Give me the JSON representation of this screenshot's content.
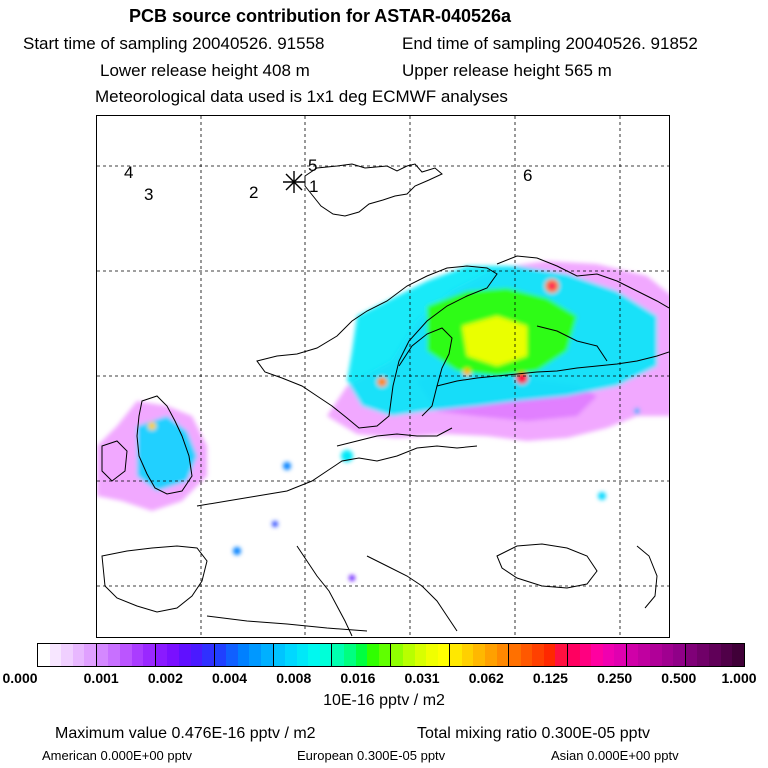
{
  "header": {
    "title": "PCB source contribution for ASTAR-040526a",
    "start_time": "Start time of sampling 20040526. 91558",
    "end_time": "End time of sampling 20040526. 91852",
    "lower_height": "Lower release height  408 m",
    "upper_height": "Upper release height  565 m",
    "met_data": "Meteorological data used is 1x1 deg ECMWF analyses"
  },
  "map": {
    "labels": [
      "1",
      "2",
      "3",
      "4",
      "5",
      "6"
    ],
    "release_marker": "release-point-star",
    "colors": {
      "coast": "#000000",
      "grid": "#000000",
      "plume_low": "#ee99ff",
      "plume_mid": "#00ffee",
      "plume_high": "#ff2060"
    }
  },
  "colorbar": {
    "ticks": [
      "0.000",
      "0.001",
      "0.002",
      "0.004",
      "0.008",
      "0.016",
      "0.031",
      "0.062",
      "0.125",
      "0.250",
      "0.500",
      "1.000"
    ],
    "units": "10E-16 pptv / m2",
    "colors": [
      "#ffffff",
      "#f7e6ff",
      "#f0d0ff",
      "#e8b8ff",
      "#e0a0ff",
      "#d488ff",
      "#c870ff",
      "#bb55ff",
      "#aa3cff",
      "#9a28ff",
      "#8a1aff",
      "#7a10ff",
      "#6010ff",
      "#4a1aff",
      "#3030ff",
      "#2040ff",
      "#1060ff",
      "#0080ff",
      "#0098ff",
      "#00b0ff",
      "#00c4ff",
      "#00d8ff",
      "#00e8f8",
      "#00f8f0",
      "#00ffd8",
      "#00ffb0",
      "#00ff80",
      "#00ff40",
      "#30ff00",
      "#60ff00",
      "#90ff00",
      "#b8ff00",
      "#d8ff00",
      "#f0ff00",
      "#ffff00",
      "#ffe800",
      "#ffd000",
      "#ffb800",
      "#ffa000",
      "#ff8800",
      "#ff7000",
      "#ff5800",
      "#ff4000",
      "#ff2800",
      "#ff1040",
      "#ff0060",
      "#ff0080",
      "#ff00a0",
      "#f000b0",
      "#e000b0",
      "#d000a8",
      "#c000a0",
      "#b00098",
      "#a00090",
      "#900088",
      "#800078",
      "#700068",
      "#600058",
      "#500048",
      "#400038"
    ]
  },
  "footer": {
    "max_value": "Maximum value  0.476E-16 pptv / m2",
    "total_mixing": "Total mixing ratio  0.300E-05 pptv",
    "american": "American  0.000E+00 pptv",
    "european": "European  0.300E-05 pptv",
    "asian": "Asian  0.000E+00 pptv"
  }
}
